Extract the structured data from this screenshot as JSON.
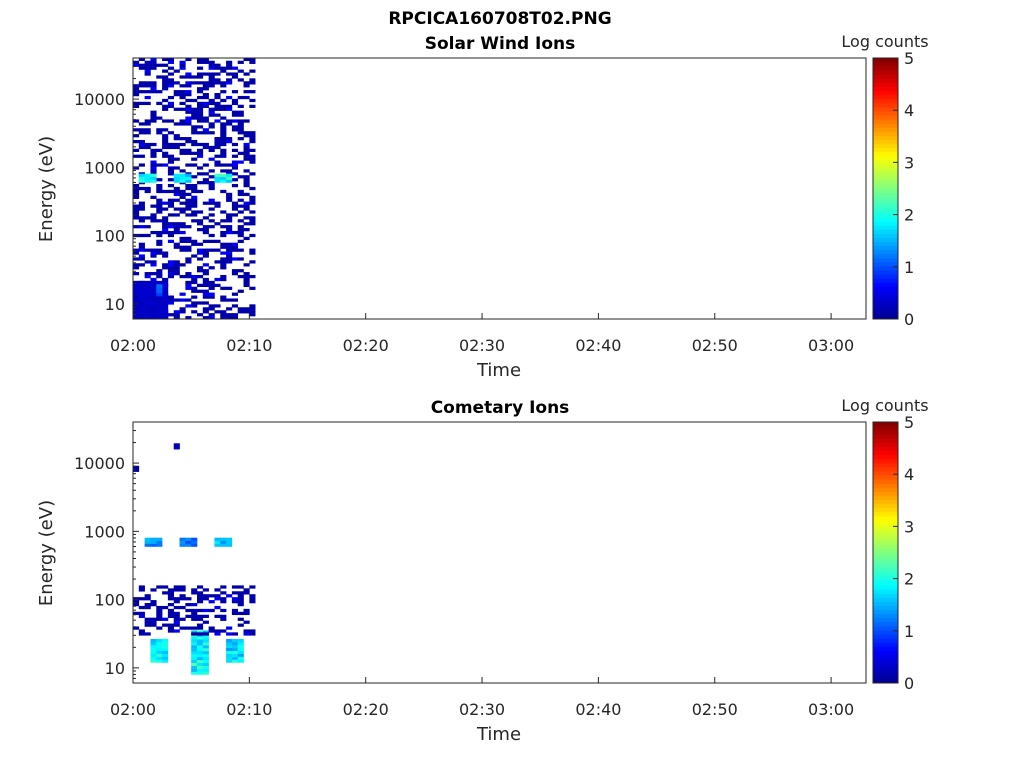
{
  "figure_title": "RPCICA160708T02.PNG",
  "colormap": [
    "#00008f",
    "#0000ff",
    "#0080ff",
    "#00ffff",
    "#80ff80",
    "#ffff00",
    "#ff8000",
    "#ff0000",
    "#800000"
  ],
  "chart_data": [
    {
      "type": "heatmap",
      "title": "Solar Wind Ions",
      "xlabel": "Time",
      "ylabel": "Energy (eV)",
      "y_scale": "log",
      "ylim_eV": [
        6,
        40000
      ],
      "x_range": [
        "02:00",
        "03:03"
      ],
      "xticks": [
        "02:00",
        "02:10",
        "02:20",
        "02:30",
        "02:40",
        "02:50",
        "03:00"
      ],
      "yticks": [
        "10",
        "100",
        "1000",
        "10000"
      ],
      "colorbar": {
        "label": "Log counts",
        "range": [
          0,
          5
        ],
        "ticks": [
          "0",
          "1",
          "2",
          "3",
          "4",
          "5"
        ]
      },
      "cell_minutes": 0.5,
      "cell_log_energy": 0.043,
      "data_window": [
        "02:00",
        "02:10:30"
      ],
      "bands": [
        {
          "t_start": "02:00",
          "t_end": "02:10:30",
          "e_min": 6,
          "e_max": 40000,
          "log_counts": 0.2,
          "note": "sparse"
        },
        {
          "t_start": "02:00:30",
          "t_end": "02:02:00",
          "e_min": 600,
          "e_max": 800,
          "log_counts": 1.9
        },
        {
          "t_start": "02:03:30",
          "t_end": "02:05:00",
          "e_min": 600,
          "e_max": 800,
          "log_counts": 1.8
        },
        {
          "t_start": "02:07:00",
          "t_end": "02:08:30",
          "e_min": 600,
          "e_max": 800,
          "log_counts": 1.9
        },
        {
          "t_start": "02:00",
          "t_end": "02:03:00",
          "e_min": 6,
          "e_max": 20,
          "log_counts": 0.3
        },
        {
          "t_start": "02:02:00",
          "t_end": "02:02:30",
          "e_min": 13,
          "e_max": 18,
          "log_counts": 1.1
        }
      ]
    },
    {
      "type": "heatmap",
      "title": "Cometary Ions",
      "xlabel": "Time",
      "ylabel": "Energy (eV)",
      "y_scale": "log",
      "ylim_eV": [
        6,
        40000
      ],
      "x_range": [
        "02:00",
        "03:03"
      ],
      "xticks": [
        "02:00",
        "02:10",
        "02:20",
        "02:30",
        "02:40",
        "02:50",
        "03:00"
      ],
      "yticks": [
        "10",
        "100",
        "1000",
        "10000"
      ],
      "colorbar": {
        "label": "Log counts",
        "range": [
          0,
          5
        ],
        "ticks": [
          "0",
          "1",
          "2",
          "3",
          "4",
          "5"
        ]
      },
      "bands": [
        {
          "t_start": "02:01",
          "t_end": "02:02:30",
          "e_min": 600,
          "e_max": 800,
          "log_counts": 1.3
        },
        {
          "t_start": "02:04",
          "t_end": "02:05:30",
          "e_min": 600,
          "e_max": 800,
          "log_counts": 1.2
        },
        {
          "t_start": "02:07",
          "t_end": "02:08:30",
          "e_min": 600,
          "e_max": 800,
          "log_counts": 1.5
        },
        {
          "t_start": "02:01:30",
          "t_end": "02:03:00",
          "e_min": 12,
          "e_max": 25,
          "log_counts": 1.8
        },
        {
          "t_start": "02:05",
          "t_end": "02:06:30",
          "e_min": 8,
          "e_max": 35,
          "log_counts": 1.9
        },
        {
          "t_start": "02:08",
          "t_end": "02:09:30",
          "e_min": 12,
          "e_max": 25,
          "log_counts": 1.7
        },
        {
          "t_start": "02:00",
          "t_end": "02:10:30",
          "e_min": 30,
          "e_max": 160,
          "log_counts": 0.2,
          "note": "sparse"
        },
        {
          "t_start": "02:00",
          "t_end": "02:00:30",
          "e_min": 7500,
          "e_max": 8500,
          "log_counts": 0.2
        },
        {
          "t_start": "02:03:30",
          "t_end": "02:04:00",
          "e_min": 16000,
          "e_max": 18000,
          "log_counts": 0.2
        }
      ]
    }
  ]
}
